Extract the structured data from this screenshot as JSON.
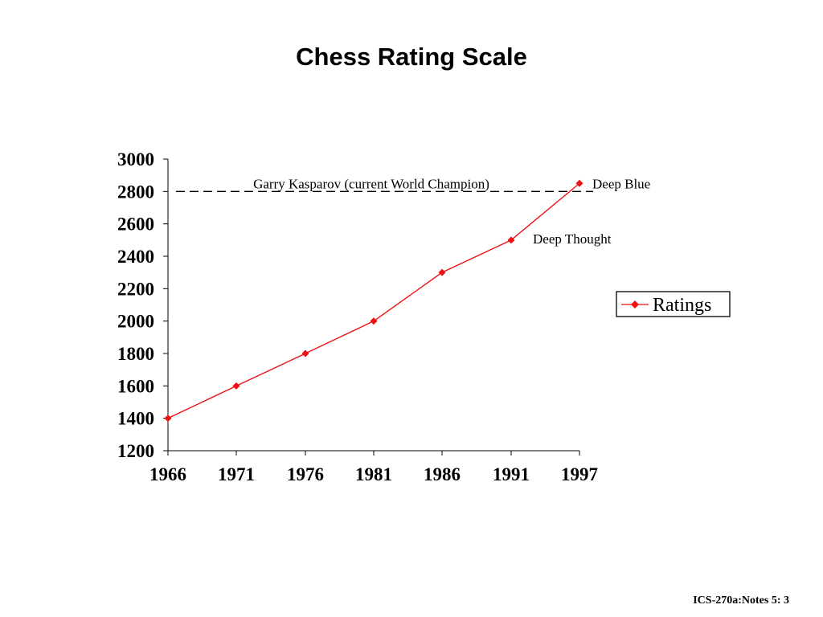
{
  "slide": {
    "footer": "ICS-270a:Notes 5: 3"
  },
  "chart_data": {
    "type": "line",
    "title": "Chess Rating Scale",
    "xlabel": "",
    "ylabel": "",
    "x": [
      "1966",
      "1971",
      "1976",
      "1981",
      "1986",
      "1991",
      "1997"
    ],
    "ylim": [
      1200,
      3000
    ],
    "y_ticks": [
      1200,
      1400,
      1600,
      1800,
      2000,
      2200,
      2400,
      2600,
      2800,
      3000
    ],
    "grid": false,
    "legend": "right",
    "series": [
      {
        "name": "Ratings",
        "color": "#ee1111",
        "marker": "diamond",
        "values": [
          1400,
          1600,
          1800,
          2000,
          2300,
          2500,
          2850
        ]
      }
    ],
    "reference_line": {
      "value": 2800,
      "style": "dashed",
      "label": "Garry Kasparov (current World Champion)"
    },
    "annotations": [
      {
        "text": "Deep Blue",
        "x": "1997",
        "y": 2850
      },
      {
        "text": "Deep Thought",
        "x": "1991",
        "y": 2500
      }
    ]
  }
}
